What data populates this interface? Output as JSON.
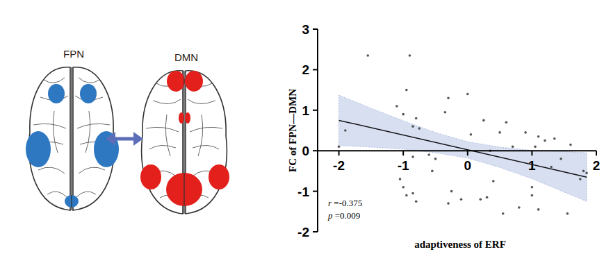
{
  "chart_data": {
    "type": "scatter",
    "x_label": "adaptiveness of ERF",
    "y_label": "FC of FPN—DMN",
    "annotations": [
      "r =-0.375",
      "p =0.009"
    ],
    "marker": "circle",
    "color": "#555555",
    "xlim": [
      -2.33,
      2
    ],
    "ylim": [
      -2,
      3
    ],
    "xticks": [
      -2,
      -1,
      0,
      1,
      2
    ],
    "yticks": [
      -2,
      -1,
      0,
      1,
      2,
      3
    ],
    "x": [
      -2.0,
      -1.9,
      -1.55,
      -1.1,
      -1.0,
      -0.95,
      -0.9,
      -0.85,
      -0.85,
      -0.8,
      -0.75,
      -1.05,
      -1.0,
      -0.95,
      -0.85,
      -0.8,
      -0.6,
      -0.55,
      -0.5,
      -0.35,
      -0.3,
      -0.25,
      -0.3,
      -0.1,
      0.0,
      0.05,
      0.2,
      0.25,
      0.3,
      0.35,
      0.4,
      0.5,
      0.55,
      0.6,
      0.7,
      0.8,
      0.9,
      1.0,
      1.0,
      1.05,
      1.1,
      1.1,
      1.2,
      1.3,
      1.35,
      1.45,
      1.55,
      1.6,
      1.75,
      1.8,
      1.85
    ],
    "y": [
      0.1,
      0.5,
      2.35,
      1.1,
      0.9,
      1.5,
      2.35,
      0.6,
      -0.15,
      0.8,
      0.55,
      -0.7,
      -0.9,
      -1.1,
      -1.05,
      -1.25,
      -0.1,
      -0.5,
      -0.2,
      0.95,
      1.3,
      -1.0,
      -1.3,
      -1.2,
      1.4,
      0.4,
      -1.2,
      0.75,
      -1.15,
      0.0,
      -0.75,
      0.45,
      -1.55,
      0.7,
      0.1,
      -1.4,
      0.45,
      -0.9,
      -1.1,
      0.1,
      -1.45,
      0.35,
      0.25,
      -0.4,
      0.3,
      -0.2,
      -1.55,
      0.15,
      -0.7,
      -0.5,
      -0.55
    ],
    "fit": {
      "x": [
        -2,
        1.85
      ],
      "y": [
        0.75,
        -0.65
      ]
    },
    "confidence_band": {
      "x": [
        -2,
        -1.5,
        -1,
        -0.5,
        0,
        0.5,
        1,
        1.5,
        1.85
      ],
      "upper": [
        1.37,
        1.05,
        0.74,
        0.45,
        0.22,
        0.09,
        0.01,
        -0.02,
        -0.05
      ],
      "lower": [
        0.13,
        0.09,
        0.04,
        -0.05,
        -0.18,
        -0.41,
        -0.69,
        -1.02,
        -1.25
      ]
    }
  },
  "diagram": {
    "networks": [
      {
        "label": "FPN",
        "color": "#2e78c2"
      },
      {
        "label": "DMN",
        "color": "#e3201c"
      }
    ]
  }
}
